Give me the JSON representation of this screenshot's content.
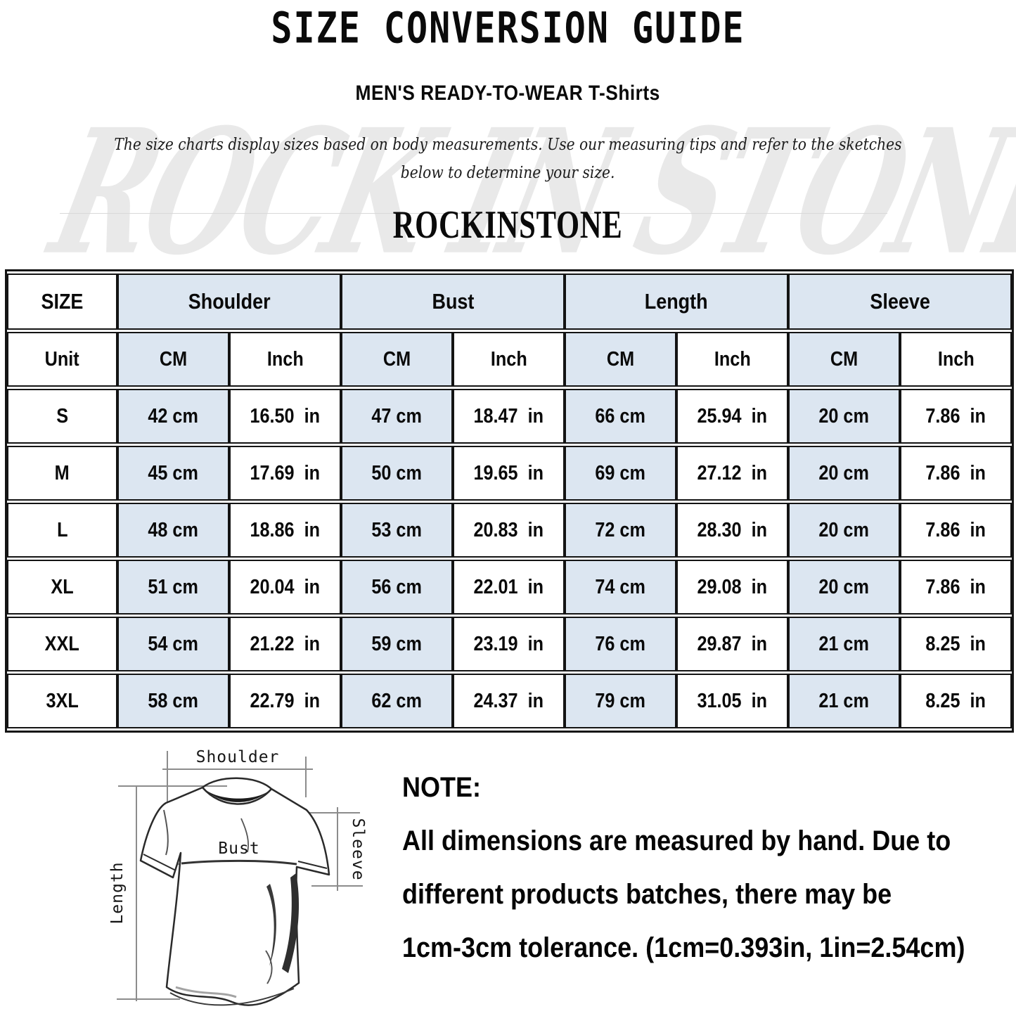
{
  "header": {
    "title": "SIZE CONVERSION GUIDE",
    "subtitle": "MEN'S READY-TO-WEAR T-Shirts",
    "description_line1": "The size charts display sizes based on body measurements. Use our measuring tips and refer to the sketches",
    "description_line2": "below to determine your size.",
    "brand": "ROCKINSTONE",
    "watermark": "ROCK IN STONE"
  },
  "size_table": {
    "group_header": [
      "SIZE",
      "Shoulder",
      "Bust",
      "Length",
      "Sleeve"
    ],
    "unit_header": [
      "Unit",
      "CM",
      "Inch",
      "CM",
      "Inch",
      "CM",
      "Inch",
      "CM",
      "Inch"
    ],
    "rows": [
      {
        "size": "S",
        "values": [
          "42 cm",
          "16.50  in",
          "47 cm",
          "18.47  in",
          "66 cm",
          "25.94  in",
          "20 cm",
          "7.86  in"
        ]
      },
      {
        "size": "M",
        "values": [
          "45 cm",
          "17.69  in",
          "50 cm",
          "19.65  in",
          "69 cm",
          "27.12  in",
          "20 cm",
          "7.86  in"
        ]
      },
      {
        "size": "L",
        "values": [
          "48 cm",
          "18.86  in",
          "53 cm",
          "20.83  in",
          "72 cm",
          "28.30  in",
          "20 cm",
          "7.86  in"
        ]
      },
      {
        "size": "XL",
        "values": [
          "51 cm",
          "20.04  in",
          "56 cm",
          "22.01  in",
          "74 cm",
          "29.08  in",
          "20 cm",
          "7.86  in"
        ]
      },
      {
        "size": "XXL",
        "values": [
          "54 cm",
          "21.22  in",
          "59 cm",
          "23.19  in",
          "76 cm",
          "29.87  in",
          "21 cm",
          "8.25  in"
        ]
      },
      {
        "size": "3XL",
        "values": [
          "58 cm",
          "22.79  in",
          "62 cm",
          "24.37  in",
          "79 cm",
          "31.05  in",
          "21 cm",
          "8.25  in"
        ]
      }
    ]
  },
  "diagram": {
    "shoulder_label": "Shoulder",
    "bust_label": "Bust",
    "length_label": "Length",
    "sleeve_label": "Sleeve"
  },
  "note": {
    "heading": "NOTE:",
    "line1": "All dimensions are measured by hand. Due to",
    "line2": "different products batches, there may be",
    "line3": "1cm-3cm tolerance. (1cm=0.393in, 1in=2.54cm)"
  },
  "colors": {
    "cell_shade": "#dce6f1",
    "table_border": "#141414",
    "text": "#0a0a0a"
  }
}
